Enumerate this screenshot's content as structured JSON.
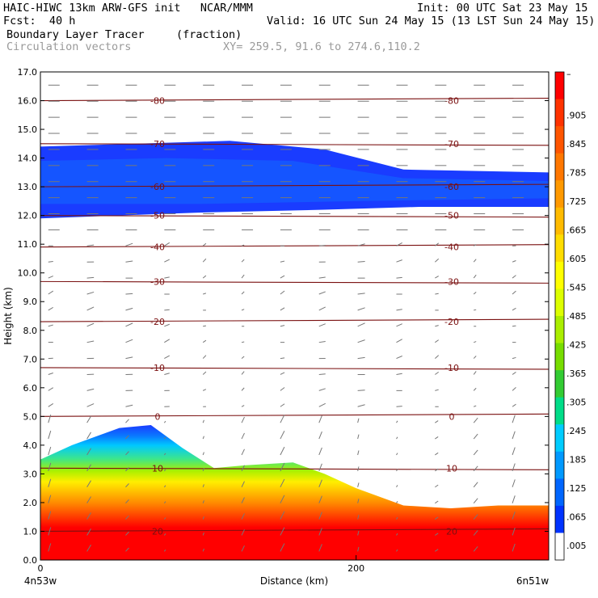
{
  "header": {
    "title_line": "HAIC-HIWC 13km ARW-GFS init   NCAR/MMM",
    "init": "Init: 00 UTC Sat 23 May 15",
    "fcst": "Fcst:  40 h",
    "valid": "Valid: 16 UTC Sun 24 May 15 (13 LST Sun 24 May 15)",
    "field1_name": "Boundary Layer Tracer",
    "field1_units": "(fraction)",
    "field2_name": "Circulation vectors",
    "xy": "XY= 259.5, 91.6 to 274.6,110.2"
  },
  "chart_data": {
    "type": "heatmap",
    "xlabel": "Distance (km)",
    "ylabel": "Height (km)",
    "xlim": [
      0,
      322
    ],
    "ylim": [
      0.0,
      17.0
    ],
    "x_ticks": [
      "0",
      "200"
    ],
    "x_end_labels": [
      "4n53w",
      "6n51w"
    ],
    "y_ticks": [
      "0.0",
      "1.0",
      "2.0",
      "3.0",
      "4.0",
      "5.0",
      "6.0",
      "7.0",
      "8.0",
      "9.0",
      "10.0",
      "11.0",
      "12.0",
      "13.0",
      "14.0",
      "15.0",
      "16.0",
      "17.0"
    ],
    "colorbar_labels": [
      "–",
      ".905",
      ".845",
      ".785",
      ".725",
      ".665",
      ".605",
      ".545",
      ".485",
      ".425",
      ".365",
      ".305",
      ".245",
      ".185",
      ".125",
      ".065",
      ".005"
    ],
    "colorbar_colors": [
      "#ff0000",
      "#ff3300",
      "#ff5500",
      "#ff7700",
      "#ff9900",
      "#ffbb00",
      "#ffdd00",
      "#ffff00",
      "#ddff00",
      "#aaee00",
      "#77dd00",
      "#33cc33",
      "#00dd88",
      "#00ccff",
      "#0099ff",
      "#0066ff",
      "#0033ff",
      "#ffffff"
    ],
    "temperature_contours": [
      {
        "label": "20",
        "y_km": 1.0
      },
      {
        "label": "10",
        "y_km": 3.2
      },
      {
        "label": "0",
        "y_km": 5.0
      },
      {
        "label": "-10",
        "y_km": 6.7
      },
      {
        "label": "-20",
        "y_km": 8.3
      },
      {
        "label": "-30",
        "y_km": 9.7
      },
      {
        "label": "-40",
        "y_km": 10.9
      },
      {
        "label": "-50",
        "y_km": 12.0
      },
      {
        "label": "-60",
        "y_km": 13.0
      },
      {
        "label": "-70",
        "y_km": 14.5
      },
      {
        "label": "-80",
        "y_km": 16.0
      }
    ],
    "upper_tracer_layer": {
      "bottom_km": 11.9,
      "top_km": 14.4,
      "value": 0.03
    },
    "boundary_layer_top_km": [
      {
        "x": 0,
        "top": 3.5
      },
      {
        "x": 20,
        "top": 4.0
      },
      {
        "x": 50,
        "top": 4.6
      },
      {
        "x": 70,
        "top": 4.7
      },
      {
        "x": 90,
        "top": 3.9
      },
      {
        "x": 110,
        "top": 3.2
      },
      {
        "x": 130,
        "top": 3.3
      },
      {
        "x": 160,
        "top": 3.4
      },
      {
        "x": 180,
        "top": 3.0
      },
      {
        "x": 200,
        "top": 2.5
      },
      {
        "x": 230,
        "top": 1.9
      },
      {
        "x": 260,
        "top": 1.8
      },
      {
        "x": 290,
        "top": 1.9
      },
      {
        "x": 322,
        "top": 1.9
      }
    ]
  }
}
